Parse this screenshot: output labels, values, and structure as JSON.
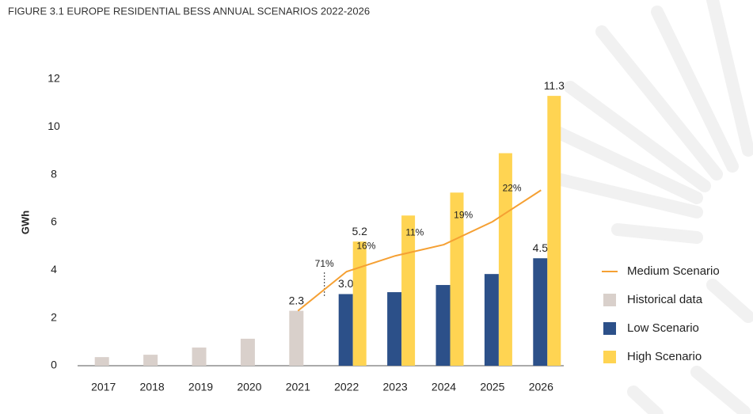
{
  "chart_data": {
    "type": "bar",
    "title": "FIGURE 3.1 EUROPE RESIDENTIAL BESS ANNUAL SCENARIOS 2022-2026",
    "y_label": "GWh",
    "categories": [
      "2017",
      "2018",
      "2019",
      "2020",
      "2021",
      "2022",
      "2023",
      "2024",
      "2025",
      "2026"
    ],
    "ylim": [
      0,
      12
    ],
    "yticks": [
      0,
      2,
      4,
      6,
      8,
      10,
      12
    ],
    "series": [
      {
        "name": "Medium Scenario",
        "type": "line",
        "color": "#f5a033",
        "values": [
          null,
          null,
          null,
          null,
          2.3,
          3.94,
          4.6,
          5.07,
          6.03,
          7.35
        ],
        "growth_labels": [
          null,
          null,
          null,
          null,
          null,
          "71%",
          "16%",
          "11%",
          "19%",
          "22%"
        ]
      },
      {
        "name": "Historical data",
        "type": "bar",
        "color": "#d9d0cb",
        "values": [
          0.36,
          0.46,
          0.76,
          1.13,
          2.3,
          null,
          null,
          null,
          null,
          null
        ],
        "value_labels": [
          null,
          null,
          null,
          null,
          "2.3",
          null,
          null,
          null,
          null,
          null
        ]
      },
      {
        "name": "Low Scenario",
        "type": "bar",
        "color": "#2c5089",
        "values": [
          null,
          null,
          null,
          null,
          null,
          3.0,
          3.08,
          3.38,
          3.84,
          4.5
        ],
        "value_labels": [
          null,
          null,
          null,
          null,
          null,
          "3.0",
          null,
          null,
          null,
          "4.5"
        ]
      },
      {
        "name": "High Scenario",
        "type": "bar",
        "color": "#ffd452",
        "values": [
          null,
          null,
          null,
          null,
          null,
          5.2,
          6.29,
          7.25,
          8.9,
          11.3
        ],
        "value_labels": [
          null,
          null,
          null,
          null,
          null,
          "5.2",
          null,
          null,
          null,
          "11.3"
        ]
      }
    ]
  }
}
